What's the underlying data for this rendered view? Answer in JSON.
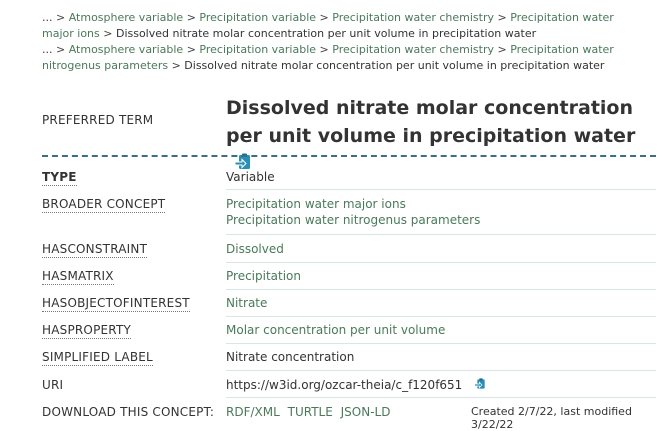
{
  "breadcrumbs": {
    "trail1": {
      "ellipsis": "...",
      "items": [
        "Atmosphere variable",
        "Precipitation variable",
        "Precipitation water chemistry",
        "Precipitation water major ions"
      ],
      "current": "Dissolved nitrate molar concentration per unit volume in precipitation water"
    },
    "trail2": {
      "ellipsis": "...",
      "items": [
        "Atmosphere variable",
        "Precipitation variable",
        "Precipitation water chemistry",
        "Precipitation water nitrogenus parameters"
      ],
      "current": "Dissolved nitrate molar concentration per unit volume in precipitation water"
    },
    "separator": ">"
  },
  "preferred_term": {
    "label": "PREFERRED TERM",
    "value": "Dissolved nitrate molar concentration per unit volume in precipitation water"
  },
  "properties": {
    "type": {
      "label": "TYPE",
      "value": "Variable"
    },
    "broader": {
      "label": "BROADER CONCEPT",
      "values": [
        "Precipitation water major ions",
        "Precipitation water nitrogenus parameters"
      ]
    },
    "constraint": {
      "label": "HASCONSTRAINT",
      "value": "Dissolved"
    },
    "matrix": {
      "label": "HASMATRIX",
      "value": "Precipitation"
    },
    "object": {
      "label": "HASOBJECTOFINTEREST",
      "value": "Nitrate"
    },
    "property": {
      "label": "HASPROPERTY",
      "value": "Molar concentration per unit volume"
    },
    "simplified": {
      "label": "SIMPLIFIED LABEL",
      "value": "Nitrate concentration"
    },
    "uri": {
      "label": "URI",
      "value": "https://w3id.org/ozcar-theia/c_f120f651"
    },
    "download": {
      "label": "DOWNLOAD THIS CONCEPT:",
      "formats": [
        "RDF/XML",
        "TURTLE",
        "JSON-LD"
      ]
    }
  },
  "metadata": {
    "created_modified": "Created 2/7/22, last modified 3/22/22"
  },
  "colors": {
    "link": "#4a7a5a",
    "accent": "#3a6f84",
    "icon": "#2a8fb5"
  },
  "icons": {
    "copy": "copy-to-clipboard-icon"
  }
}
